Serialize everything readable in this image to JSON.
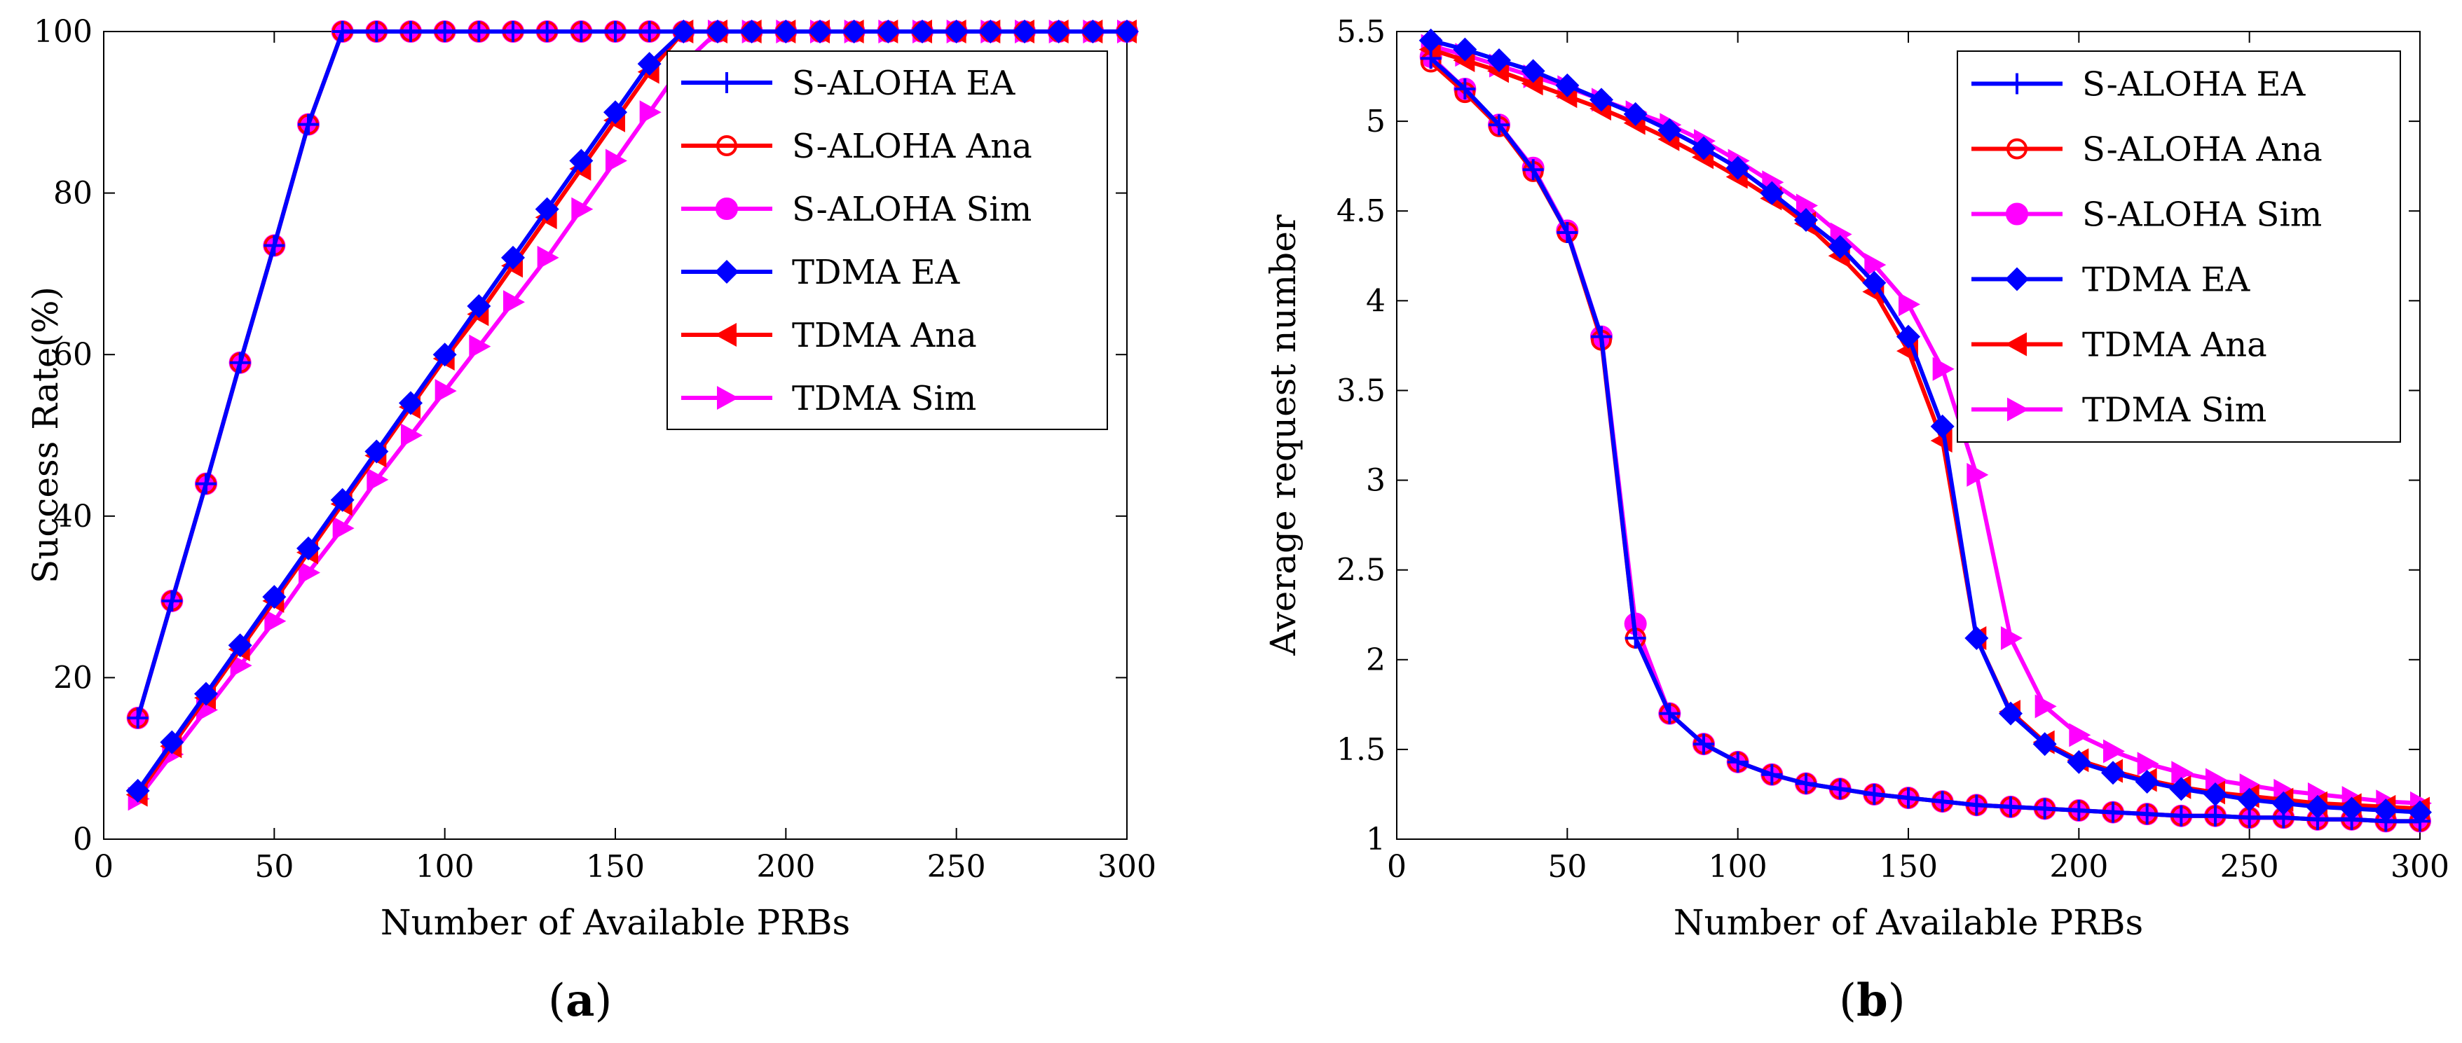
{
  "chart_data": [
    {
      "type": "line",
      "panel_label": "(a)",
      "panel_letter": "a",
      "xlabel": "Number of Available PRBs",
      "ylabel": "Success Rate(%)",
      "xlim": [
        0,
        300
      ],
      "ylim": [
        0,
        100
      ],
      "xticks": [
        "0",
        "50",
        "100",
        "150",
        "200",
        "250",
        "300"
      ],
      "yticks": [
        "0",
        "20",
        "40",
        "60",
        "80",
        "100"
      ],
      "legend_position": "top-right",
      "series": [
        {
          "name": "S-ALOHA EA",
          "color": "#0000ff",
          "marker": "plus",
          "x": [
            10,
            20,
            30,
            40,
            50,
            60,
            70,
            80,
            90,
            100,
            110,
            120,
            130,
            140,
            150,
            160,
            170,
            180,
            190,
            200,
            210,
            220,
            230,
            240,
            250,
            260,
            270,
            280,
            290,
            300
          ],
          "y": [
            15,
            29.5,
            44,
            59,
            73.5,
            88.5,
            100,
            100,
            100,
            100,
            100,
            100,
            100,
            100,
            100,
            100,
            100,
            100,
            100,
            100,
            100,
            100,
            100,
            100,
            100,
            100,
            100,
            100,
            100,
            100
          ]
        },
        {
          "name": "S-ALOHA Ana",
          "color": "#ff0000",
          "marker": "circle",
          "x": [
            10,
            20,
            30,
            40,
            50,
            60,
            70,
            80,
            90,
            100,
            110,
            120,
            130,
            140,
            150,
            160,
            170,
            180,
            190,
            200,
            210,
            220,
            230,
            240,
            250,
            260,
            270,
            280,
            290,
            300
          ],
          "y": [
            15,
            29.5,
            44,
            59,
            73.5,
            88.5,
            100,
            100,
            100,
            100,
            100,
            100,
            100,
            100,
            100,
            100,
            100,
            100,
            100,
            100,
            100,
            100,
            100,
            100,
            100,
            100,
            100,
            100,
            100,
            100
          ]
        },
        {
          "name": "S-ALOHA Sim",
          "color": "#ff00ff",
          "marker": "dot",
          "x": [
            10,
            20,
            30,
            40,
            50,
            60,
            70,
            80,
            90,
            100,
            110,
            120,
            130,
            140,
            150,
            160,
            170,
            180,
            190,
            200,
            210,
            220,
            230,
            240,
            250,
            260,
            270,
            280,
            290,
            300
          ],
          "y": [
            15,
            29.5,
            44,
            59,
            73.5,
            88.5,
            100,
            100,
            100,
            100,
            100,
            100,
            100,
            100,
            100,
            100,
            100,
            100,
            100,
            100,
            100,
            100,
            100,
            100,
            100,
            100,
            100,
            100,
            100,
            100
          ]
        },
        {
          "name": "TDMA EA",
          "color": "#0000ff",
          "marker": "diamond",
          "x": [
            10,
            20,
            30,
            40,
            50,
            60,
            70,
            80,
            90,
            100,
            110,
            120,
            130,
            140,
            150,
            160,
            170,
            180,
            190,
            200,
            210,
            220,
            230,
            240,
            250,
            260,
            270,
            280,
            290,
            300
          ],
          "y": [
            6,
            12,
            18,
            24,
            30,
            36,
            42,
            48,
            54,
            60,
            66,
            72,
            78,
            84,
            90,
            96,
            100,
            100,
            100,
            100,
            100,
            100,
            100,
            100,
            100,
            100,
            100,
            100,
            100,
            100
          ]
        },
        {
          "name": "TDMA Ana",
          "color": "#ff0000",
          "marker": "triangle-left",
          "x": [
            10,
            20,
            30,
            40,
            50,
            60,
            70,
            80,
            90,
            100,
            110,
            120,
            130,
            140,
            150,
            160,
            170,
            180,
            190,
            200,
            210,
            220,
            230,
            240,
            250,
            260,
            270,
            280,
            290,
            300
          ],
          "y": [
            5.5,
            11.5,
            17.5,
            23.5,
            29.5,
            35.5,
            41.5,
            47.5,
            53.5,
            59.5,
            65,
            71,
            77,
            83,
            89,
            95,
            100,
            100,
            100,
            100,
            100,
            100,
            100,
            100,
            100,
            100,
            100,
            100,
            100,
            100
          ]
        },
        {
          "name": "TDMA Sim",
          "color": "#ff00ff",
          "marker": "triangle-right",
          "x": [
            10,
            20,
            30,
            40,
            50,
            60,
            70,
            80,
            90,
            100,
            110,
            120,
            130,
            140,
            150,
            160,
            170,
            180,
            190,
            200,
            210,
            220,
            230,
            240,
            250,
            260,
            270,
            280,
            290,
            300
          ],
          "y": [
            5,
            10.5,
            16,
            21.5,
            27,
            33,
            38.5,
            44.5,
            50,
            55.5,
            61,
            66.5,
            72,
            78,
            84,
            90,
            96,
            100,
            100,
            100,
            100,
            100,
            100,
            100,
            100,
            100,
            100,
            100,
            100,
            100
          ]
        }
      ]
    },
    {
      "type": "line",
      "panel_label": "(b)",
      "panel_letter": "b",
      "xlabel": "Number of Available PRBs",
      "ylabel": "Average request number",
      "xlim": [
        0,
        300
      ],
      "ylim": [
        1,
        5.5
      ],
      "xticks": [
        "0",
        "50",
        "100",
        "150",
        "200",
        "250",
        "300"
      ],
      "yticks": [
        "1",
        "1.5",
        "2",
        "2.5",
        "3",
        "3.5",
        "4",
        "4.5",
        "5",
        "5.5"
      ],
      "legend_position": "top-right",
      "series": [
        {
          "name": "S-ALOHA EA",
          "color": "#0000ff",
          "marker": "plus",
          "x": [
            10,
            20,
            30,
            40,
            50,
            60,
            70,
            80,
            90,
            100,
            110,
            120,
            130,
            140,
            150,
            160,
            170,
            180,
            190,
            200,
            210,
            220,
            230,
            240,
            250,
            260,
            270,
            280,
            290,
            300
          ],
          "y": [
            5.35,
            5.18,
            4.98,
            4.73,
            4.38,
            3.8,
            2.12,
            1.7,
            1.53,
            1.43,
            1.36,
            1.31,
            1.28,
            1.25,
            1.23,
            1.21,
            1.19,
            1.18,
            1.17,
            1.16,
            1.15,
            1.14,
            1.13,
            1.13,
            1.12,
            1.12,
            1.11,
            1.11,
            1.1,
            1.1
          ]
        },
        {
          "name": "S-ALOHA Ana",
          "color": "#ff0000",
          "marker": "circle",
          "x": [
            10,
            20,
            30,
            40,
            50,
            60,
            70,
            80,
            90,
            100,
            110,
            120,
            130,
            140,
            150,
            160,
            170,
            180,
            190,
            200,
            210,
            220,
            230,
            240,
            250,
            260,
            270,
            280,
            290,
            300
          ],
          "y": [
            5.33,
            5.16,
            4.97,
            4.72,
            4.38,
            3.78,
            2.12,
            1.7,
            1.53,
            1.43,
            1.36,
            1.31,
            1.28,
            1.25,
            1.23,
            1.21,
            1.19,
            1.18,
            1.17,
            1.16,
            1.15,
            1.14,
            1.13,
            1.13,
            1.12,
            1.12,
            1.11,
            1.11,
            1.1,
            1.1
          ]
        },
        {
          "name": "S-ALOHA Sim",
          "color": "#ff00ff",
          "marker": "dot",
          "x": [
            10,
            20,
            30,
            40,
            50,
            60,
            70,
            80,
            90,
            100,
            110,
            120,
            130,
            140,
            150,
            160,
            170,
            180,
            190,
            200,
            210,
            220,
            230,
            240,
            250,
            260,
            270,
            280,
            290,
            300
          ],
          "y": [
            5.36,
            5.18,
            4.98,
            4.74,
            4.39,
            3.8,
            2.2,
            1.7,
            1.53,
            1.43,
            1.36,
            1.31,
            1.28,
            1.25,
            1.23,
            1.21,
            1.19,
            1.18,
            1.17,
            1.16,
            1.15,
            1.14,
            1.13,
            1.13,
            1.12,
            1.12,
            1.11,
            1.11,
            1.1,
            1.1
          ]
        },
        {
          "name": "TDMA EA",
          "color": "#0000ff",
          "marker": "diamond",
          "x": [
            10,
            20,
            30,
            40,
            50,
            60,
            70,
            80,
            90,
            100,
            110,
            120,
            130,
            140,
            150,
            160,
            170,
            180,
            190,
            200,
            210,
            220,
            230,
            240,
            250,
            260,
            270,
            280,
            290,
            300
          ],
          "y": [
            5.45,
            5.4,
            5.34,
            5.28,
            5.2,
            5.12,
            5.04,
            4.95,
            4.85,
            4.74,
            4.6,
            4.45,
            4.3,
            4.1,
            3.8,
            3.3,
            2.12,
            1.7,
            1.53,
            1.43,
            1.37,
            1.32,
            1.28,
            1.25,
            1.22,
            1.2,
            1.18,
            1.17,
            1.16,
            1.15
          ]
        },
        {
          "name": "TDMA Ana",
          "color": "#ff0000",
          "marker": "triangle-left",
          "x": [
            10,
            20,
            30,
            40,
            50,
            60,
            70,
            80,
            90,
            100,
            110,
            120,
            130,
            140,
            150,
            160,
            170,
            180,
            190,
            200,
            210,
            220,
            230,
            240,
            250,
            260,
            270,
            280,
            290,
            300
          ],
          "y": [
            5.4,
            5.34,
            5.28,
            5.21,
            5.14,
            5.07,
            4.99,
            4.9,
            4.8,
            4.69,
            4.57,
            4.43,
            4.25,
            4.05,
            3.72,
            3.22,
            2.12,
            1.71,
            1.54,
            1.44,
            1.38,
            1.33,
            1.29,
            1.26,
            1.24,
            1.22,
            1.2,
            1.19,
            1.18,
            1.17
          ]
        },
        {
          "name": "TDMA Sim",
          "color": "#ff00ff",
          "marker": "triangle-right",
          "x": [
            10,
            20,
            30,
            40,
            50,
            60,
            70,
            80,
            90,
            100,
            110,
            120,
            130,
            140,
            150,
            160,
            170,
            180,
            190,
            200,
            210,
            220,
            230,
            240,
            250,
            260,
            270,
            280,
            290,
            300
          ],
          "y": [
            5.42,
            5.37,
            5.31,
            5.25,
            5.19,
            5.12,
            5.05,
            4.98,
            4.89,
            4.78,
            4.66,
            4.53,
            4.37,
            4.2,
            3.98,
            3.62,
            3.03,
            2.12,
            1.74,
            1.58,
            1.49,
            1.42,
            1.37,
            1.33,
            1.3,
            1.27,
            1.25,
            1.23,
            1.21,
            1.2
          ]
        }
      ]
    }
  ]
}
